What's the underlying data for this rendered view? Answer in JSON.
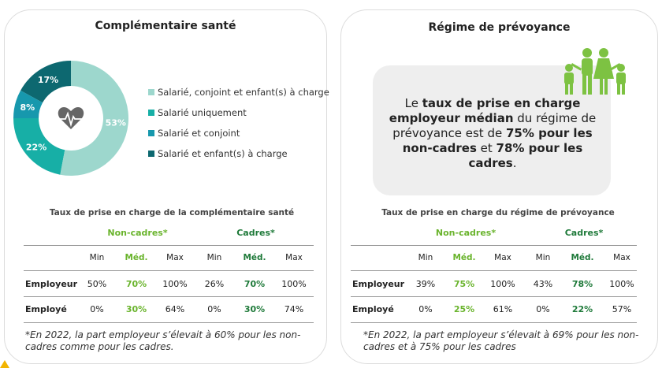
{
  "left_card": {
    "title": "Complémentaire santé",
    "table": {
      "title": "Taux de prise en charge de la complémentaire santé",
      "groups": [
        "Non-cadres*",
        "Cadres*"
      ],
      "subheaders": [
        "Min",
        "Méd.",
        "Max",
        "Min",
        "Méd.",
        "Max"
      ],
      "rows": [
        {
          "label": "Employeur",
          "cells": [
            "50%",
            "70%",
            "100%",
            "26%",
            "70%",
            "100%"
          ]
        },
        {
          "label": "Employé",
          "cells": [
            "0%",
            "30%",
            "64%",
            "0%",
            "30%",
            "74%"
          ]
        }
      ]
    },
    "footnote": "*En 2022, la part employeur s’élevait à 60% pour les non-cadres comme pour les cadres."
  },
  "chart_data": {
    "type": "pie",
    "donut": true,
    "categories": [
      "Salarié, conjoint et enfant(s) à charge",
      "Salarié uniquement",
      "Salarié et conjoint",
      "Salarié et enfant(s) à charge"
    ],
    "values": [
      53,
      22,
      8,
      17
    ],
    "value_labels": [
      "53%",
      "22%",
      "8%",
      "17%"
    ],
    "colors": [
      "#9dd7cd",
      "#17afa6",
      "#1798ad",
      "#0d6870"
    ]
  },
  "right_card": {
    "title": "Régime de prévoyance",
    "box": [
      "Le ",
      "taux de prise en charge employeur médian",
      " du régime de prévoyance est de ",
      "75% pour les non-cadres",
      " et ",
      "78% pour les cadres",
      "."
    ],
    "table": {
      "title": "Taux de prise en charge du régime de prévoyance",
      "groups": [
        "Non-cadres*",
        "Cadres*"
      ],
      "subheaders": [
        "Min",
        "Méd.",
        "Max",
        "Min",
        "Méd.",
        "Max"
      ],
      "rows": [
        {
          "label": "Employeur",
          "cells": [
            "39%",
            "75%",
            "100%",
            "43%",
            "78%",
            "100%"
          ]
        },
        {
          "label": "Employé",
          "cells": [
            "0%",
            "25%",
            "61%",
            "0%",
            "22%",
            "57%"
          ]
        }
      ]
    },
    "footnote": "*En 2022, la part employeur s’élevait à 69% pour les non-cadres et à 75% pour les cadres"
  }
}
